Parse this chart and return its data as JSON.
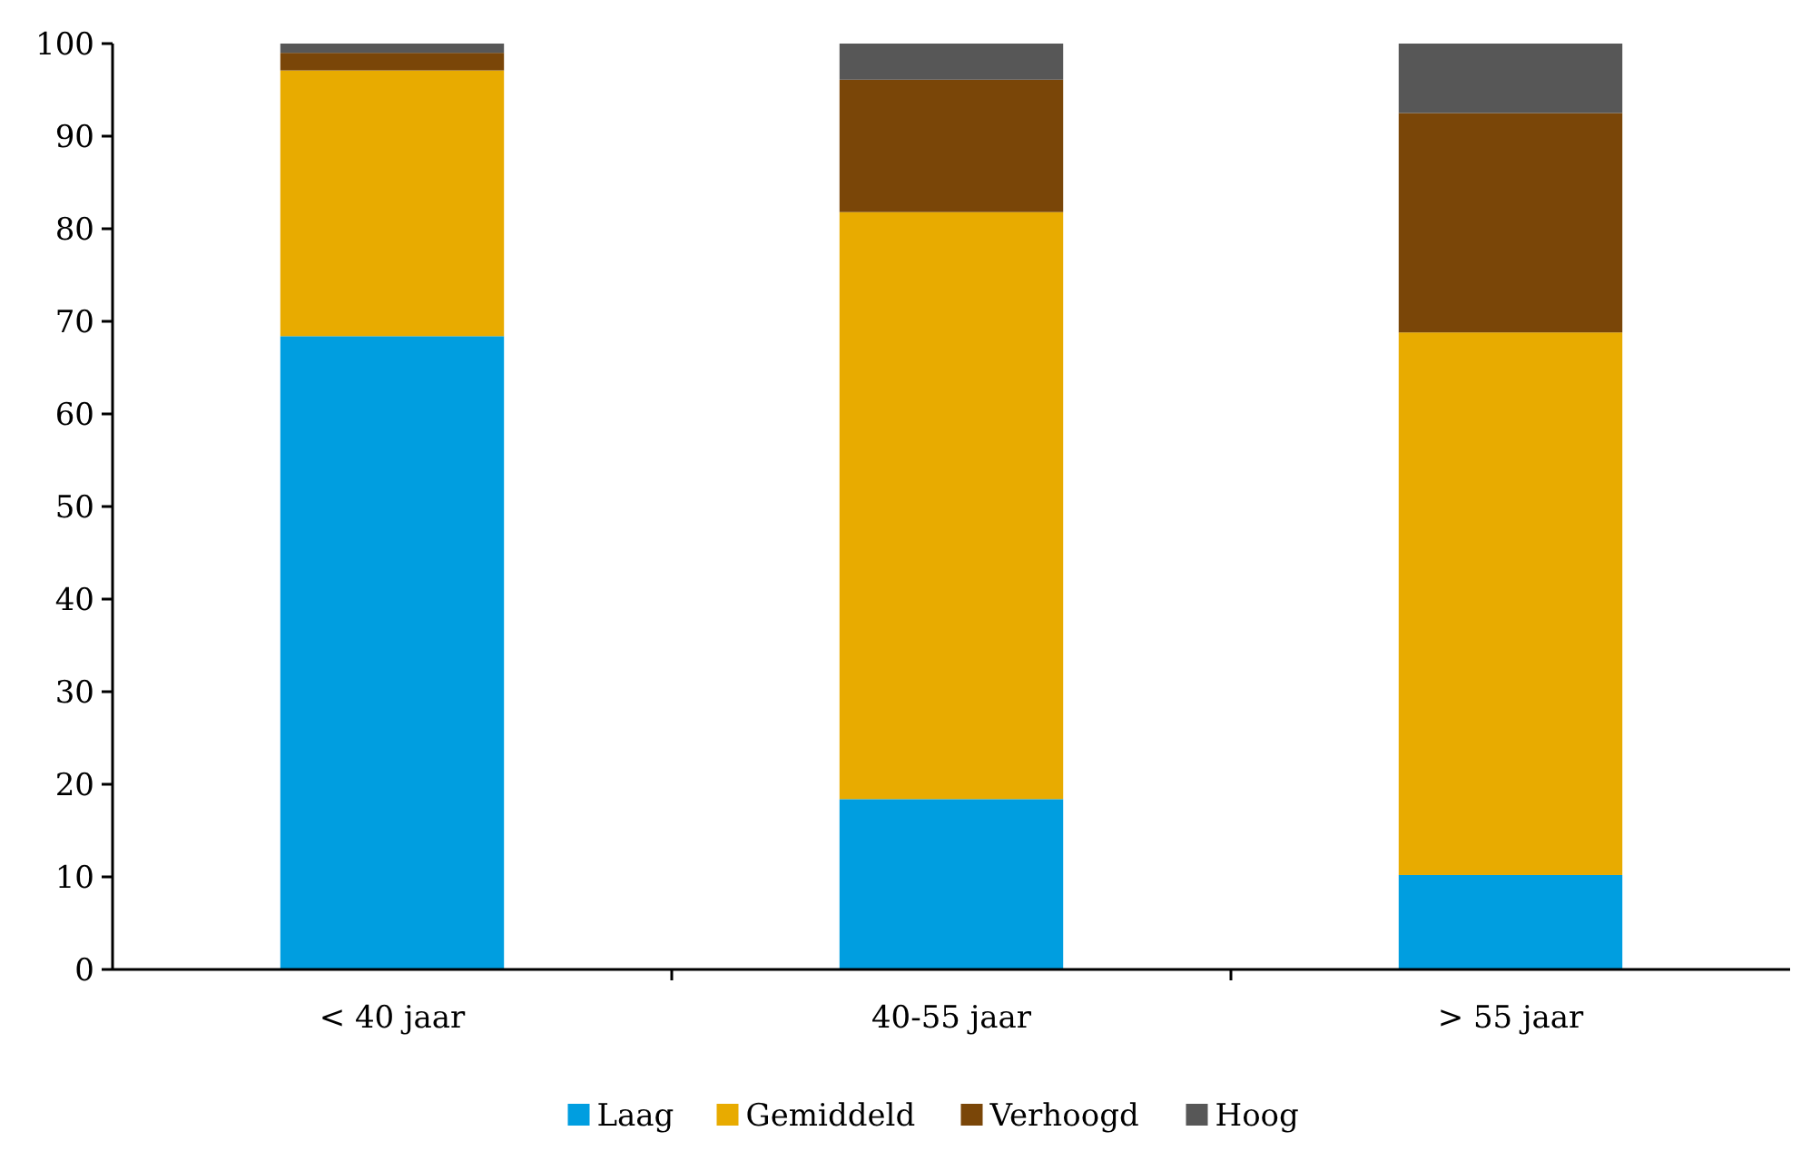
{
  "chart_data": {
    "type": "bar",
    "stacked": true,
    "categories": [
      "< 40 jaar",
      "40-55 jaar",
      "> 55 jaar"
    ],
    "series": [
      {
        "name": "Laag",
        "color": "#009ee0",
        "values": [
          68.4,
          18.4,
          10.2
        ]
      },
      {
        "name": "Gemiddeld",
        "color": "#e8ab00",
        "values": [
          28.7,
          63.4,
          58.6
        ]
      },
      {
        "name": "Verhoogd",
        "color": "#7a4608",
        "values": [
          1.9,
          14.3,
          23.7
        ]
      },
      {
        "name": "Hoog",
        "color": "#575757",
        "values": [
          1.0,
          3.9,
          7.5
        ]
      }
    ],
    "ylim": [
      0,
      100
    ],
    "yticks": [
      0,
      10,
      20,
      30,
      40,
      50,
      60,
      70,
      80,
      90,
      100
    ],
    "grid": false,
    "legend": "bottom"
  }
}
